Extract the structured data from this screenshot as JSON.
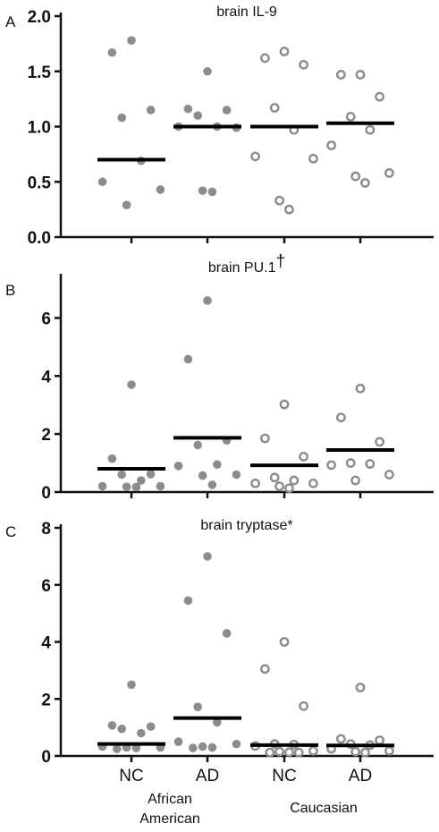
{
  "colors": {
    "point": "#8c8c8c",
    "axis": "#111111",
    "median": "#000000"
  },
  "categories": [
    "NC",
    "AD",
    "NC",
    "AD"
  ],
  "groups": [
    "African\nAmerican",
    "Caucasian"
  ],
  "chart_data": [
    {
      "type": "scatter",
      "panel": "A",
      "title": "brain IL-9",
      "ylim": [
        0,
        2.0
      ],
      "yticks": [
        "0.0",
        "0.5",
        "1.0",
        "1.5",
        "2.0"
      ],
      "categories": [
        "NC",
        "AD",
        "NC",
        "AD"
      ],
      "series": [
        {
          "group": "African American",
          "marker": "filled",
          "values": [
            1.78,
            1.67,
            1.15,
            1.08,
            0.69,
            0.5,
            0.43,
            0.29
          ],
          "median": 0.7
        },
        {
          "group": "African American",
          "marker": "filled",
          "values": [
            1.5,
            1.16,
            1.15,
            1.1,
            1.0,
            1.0,
            0.99,
            0.42,
            0.41
          ],
          "median": 1.0
        },
        {
          "group": "Caucasian",
          "marker": "open",
          "values": [
            1.68,
            1.62,
            1.56,
            1.17,
            0.97,
            0.73,
            0.71,
            0.33,
            0.25
          ],
          "median": 1.0
        },
        {
          "group": "Caucasian",
          "marker": "open",
          "values": [
            1.47,
            1.47,
            1.27,
            1.09,
            0.97,
            0.83,
            0.58,
            0.55,
            0.49
          ],
          "median": 1.03
        }
      ]
    },
    {
      "type": "scatter",
      "panel": "B",
      "title": "brain PU.1",
      "title_mark": "†",
      "ylim": [
        0,
        7.4
      ],
      "yticks": [
        "0",
        "2",
        "4",
        "6"
      ],
      "categories": [
        "NC",
        "AD",
        "NC",
        "AD"
      ],
      "series": [
        {
          "group": "African American",
          "marker": "filled",
          "values": [
            3.7,
            1.15,
            0.62,
            0.6,
            0.4,
            0.2,
            0.2,
            0.18,
            0.17
          ],
          "median": 0.8
        },
        {
          "group": "African American",
          "marker": "filled",
          "values": [
            6.6,
            4.58,
            1.78,
            1.62,
            0.95,
            0.9,
            0.6,
            0.57,
            0.25
          ],
          "median": 1.87
        },
        {
          "group": "Caucasian",
          "marker": "open",
          "values": [
            3.02,
            1.85,
            1.22,
            0.5,
            0.4,
            0.3,
            0.3,
            0.2,
            0.13
          ],
          "median": 0.92
        },
        {
          "group": "Caucasian",
          "marker": "open",
          "values": [
            3.57,
            2.57,
            1.73,
            1.0,
            0.97,
            0.93,
            0.6,
            0.4
          ],
          "median": 1.45
        }
      ]
    },
    {
      "type": "scatter",
      "panel": "C",
      "title": "brain tryptase*",
      "ylim": [
        0,
        8
      ],
      "yticks": [
        "0",
        "2",
        "4",
        "6",
        "8"
      ],
      "categories": [
        "NC",
        "AD",
        "NC",
        "AD"
      ],
      "series": [
        {
          "group": "African American",
          "marker": "filled",
          "values": [
            2.5,
            1.07,
            1.03,
            0.95,
            0.8,
            0.33,
            0.3,
            0.3,
            0.28,
            0.25
          ],
          "median": 0.42
        },
        {
          "group": "African American",
          "marker": "filled",
          "values": [
            7.0,
            5.45,
            4.3,
            1.72,
            1.18,
            0.5,
            0.42,
            0.33,
            0.3,
            0.28
          ],
          "median": 1.33
        },
        {
          "group": "Caucasian",
          "marker": "open",
          "values": [
            4.0,
            3.05,
            1.75,
            0.42,
            0.4,
            0.35,
            0.18,
            0.15,
            0.13,
            0.12,
            0.12
          ],
          "median": 0.38
        },
        {
          "group": "Caucasian",
          "marker": "open",
          "values": [
            2.4,
            0.6,
            0.55,
            0.42,
            0.38,
            0.25,
            0.18,
            0.15,
            0.12
          ],
          "median": 0.37
        }
      ]
    }
  ]
}
